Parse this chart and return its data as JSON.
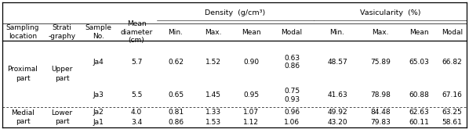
{
  "rows": [
    {
      "sample": "Ja4",
      "diameter": "5.7",
      "d_min": "0.62",
      "d_max": "1.52",
      "d_mean": "0.90",
      "d_modal": "0.63\n0.86",
      "v_min": "48.57",
      "v_max": "75.89",
      "v_mean": "65.03",
      "v_modal": "66.82"
    },
    {
      "sample": "Ja3",
      "diameter": "5.5",
      "d_min": "0.65",
      "d_max": "1.45",
      "d_mean": "0.95",
      "d_modal": "0.75\n0.93",
      "v_min": "41.63",
      "v_max": "78.98",
      "v_mean": "60.88",
      "v_modal": "67.16"
    },
    {
      "sample": "Ja2",
      "diameter": "4.0",
      "d_min": "0.81",
      "d_max": "1.33",
      "d_mean": "1.07",
      "d_modal": "0.96",
      "v_min": "49.92",
      "v_max": "84.48",
      "v_mean": "62.63",
      "v_modal": "63.25"
    },
    {
      "sample": "Ja1",
      "diameter": "3.4",
      "d_min": "0.86",
      "d_max": "1.53",
      "d_mean": "1.12",
      "d_modal": "1.06",
      "v_min": "43.20",
      "v_max": "79.83",
      "v_mean": "60.11",
      "v_modal": "58.61"
    }
  ],
  "density_label": "Density  (g/cm³)",
  "vasic_label": "Vasicularity  (%)",
  "sub_headers": [
    "Sampling\nlocation",
    "Strati\n-graphy",
    "Sample\nNo.",
    "Mean\ndiameter\n(cm)",
    "Min.",
    "Max.",
    "Mean",
    "Modal",
    "Min.",
    "Max.",
    "Mean",
    "Modal"
  ],
  "bg": "#ffffff",
  "tc": "#000000",
  "fs": 6.8
}
